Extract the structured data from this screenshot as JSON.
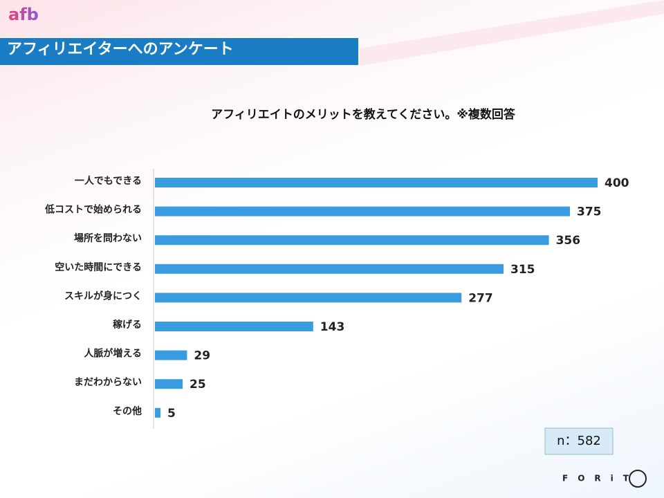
{
  "header": {
    "logo": "afb",
    "title": "アフィリエイターへのアンケート"
  },
  "chart_data": {
    "type": "bar",
    "orientation": "horizontal",
    "title": "アフィリエイトのメリットを教えてください。※複数回答",
    "categories": [
      "一人でもできる",
      "低コストで始められる",
      "場所を問わない",
      "空いた時間にできる",
      "スキルが身につく",
      "稼げる",
      "人脈が増える",
      "まだわからない",
      "その他"
    ],
    "values": [
      400,
      375,
      356,
      315,
      277,
      143,
      29,
      25,
      5
    ],
    "color": "#3a9ce0"
  },
  "footer": {
    "note": "n：582",
    "logo": "FORiT"
  }
}
